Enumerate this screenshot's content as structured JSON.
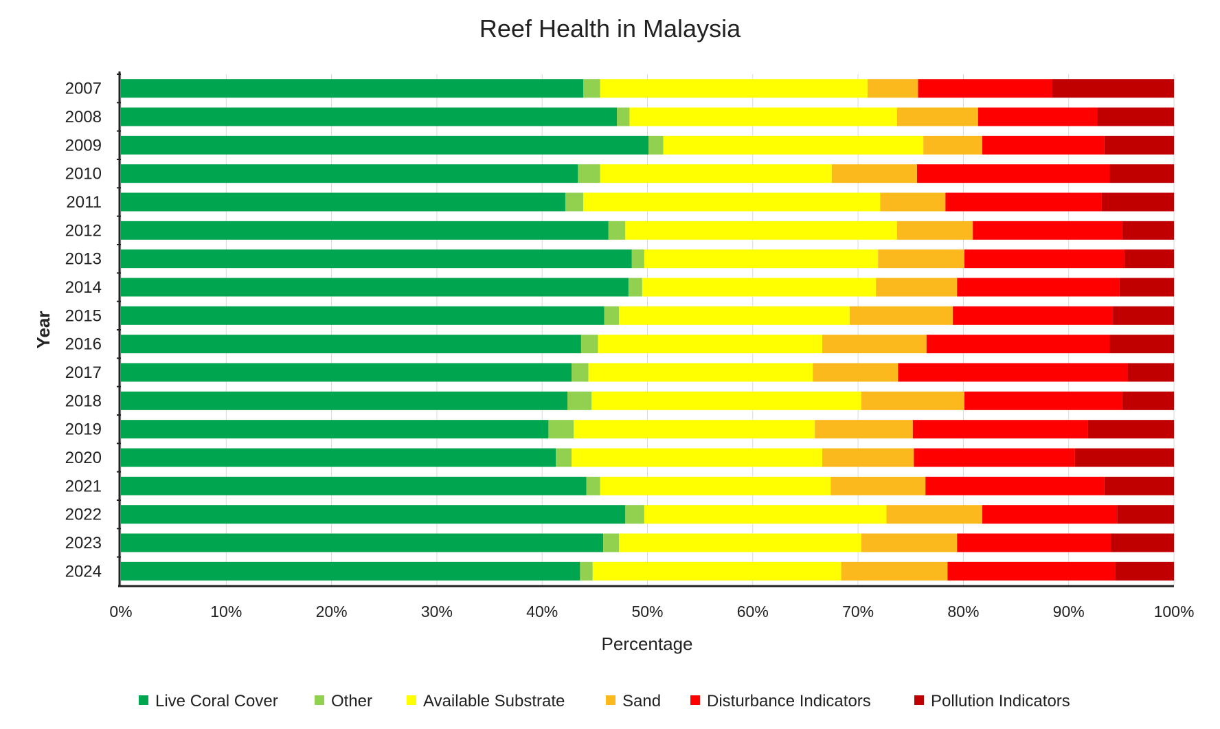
{
  "chart_data": {
    "type": "bar",
    "orientation": "horizontal",
    "stacked": "percent",
    "title": "Reef Health in Malaysia",
    "xlabel": "Percentage",
    "ylabel": "Year",
    "xlim": [
      0,
      100
    ],
    "x_ticks": [
      "0%",
      "10%",
      "20%",
      "30%",
      "40%",
      "50%",
      "60%",
      "70%",
      "80%",
      "90%",
      "100%"
    ],
    "grid": true,
    "legend_position": "bottom",
    "categories": [
      "2007",
      "2008",
      "2009",
      "2010",
      "2011",
      "2012",
      "2013",
      "2014",
      "2015",
      "2016",
      "2017",
      "2018",
      "2019",
      "2020",
      "2021",
      "2022",
      "2023",
      "2024"
    ],
    "series": [
      {
        "name": "Live Coral Cover",
        "color": "#00a550",
        "values": [
          43.9,
          47.1,
          50.1,
          43.4,
          42.2,
          46.3,
          48.5,
          48.2,
          45.9,
          43.7,
          42.8,
          42.4,
          40.6,
          41.3,
          44.2,
          47.9,
          45.8,
          43.6
        ]
      },
      {
        "name": "Other",
        "color": "#92d050",
        "values": [
          1.6,
          1.2,
          1.4,
          2.1,
          1.7,
          1.6,
          1.2,
          1.3,
          1.4,
          1.6,
          1.6,
          2.3,
          2.4,
          1.5,
          1.3,
          1.8,
          1.5,
          1.2
        ]
      },
      {
        "name": "Available Substrate",
        "color": "#ffff00",
        "values": [
          25.4,
          25.4,
          24.7,
          22.0,
          28.2,
          25.8,
          22.2,
          22.2,
          21.9,
          21.3,
          21.3,
          25.6,
          22.9,
          23.8,
          21.9,
          23.0,
          23.0,
          23.6
        ]
      },
      {
        "name": "Sand",
        "color": "#fbb91e",
        "values": [
          4.8,
          7.7,
          5.6,
          8.1,
          6.2,
          7.2,
          8.2,
          7.7,
          9.8,
          9.9,
          8.1,
          9.8,
          9.3,
          8.7,
          9.0,
          9.1,
          9.1,
          10.1
        ]
      },
      {
        "name": "Disturbance Indicators",
        "color": "#ff0000",
        "values": [
          12.7,
          11.3,
          11.6,
          18.3,
          14.8,
          14.2,
          15.2,
          15.4,
          15.2,
          17.4,
          21.8,
          15.0,
          16.6,
          15.3,
          17.0,
          12.8,
          14.6,
          15.9
        ]
      },
      {
        "name": "Pollution Indicators",
        "color": "#c00000",
        "values": [
          11.6,
          7.3,
          6.6,
          6.1,
          6.9,
          4.9,
          4.7,
          5.2,
          5.8,
          6.1,
          4.4,
          4.9,
          8.2,
          9.4,
          6.6,
          5.4,
          6.0,
          5.6
        ]
      }
    ]
  }
}
